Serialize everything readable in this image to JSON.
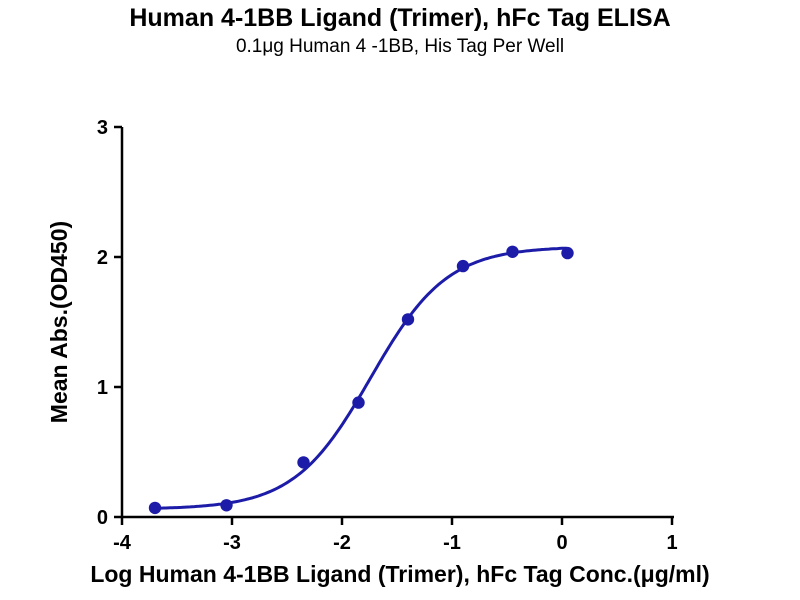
{
  "page": {
    "background": "#ffffff"
  },
  "chart_data": {
    "type": "scatter",
    "title": "Human 4-1BB Ligand (Trimer), hFc Tag ELISA",
    "subtitle": "0.1μg Human 4 -1BB, His Tag Per Well",
    "xlabel": "Log Human 4-1BB Ligand (Trimer), hFc Tag Conc.(μg/ml)",
    "ylabel": "Mean Abs.(OD450)",
    "xlim": [
      -4,
      1
    ],
    "ylim": [
      0,
      3
    ],
    "x_ticks": [
      -4,
      -3,
      -2,
      -1,
      0,
      1
    ],
    "y_ticks": [
      0,
      1,
      2,
      3
    ],
    "grid": false,
    "legend": "none",
    "axis_color": "#000000",
    "series": [
      {
        "name": "Human 4-1BB Ligand (Trimer), hFc Tag",
        "color": "#1c1ca8",
        "marker": "circle",
        "points": [
          {
            "x": -3.7,
            "y": 0.07
          },
          {
            "x": -3.05,
            "y": 0.09
          },
          {
            "x": -2.35,
            "y": 0.42
          },
          {
            "x": -1.85,
            "y": 0.88
          },
          {
            "x": -1.4,
            "y": 1.52
          },
          {
            "x": -0.9,
            "y": 1.93
          },
          {
            "x": -0.45,
            "y": 2.04
          },
          {
            "x": 0.05,
            "y": 2.03
          }
        ],
        "fit_curve": {
          "model": "4PL",
          "bottom": 0.06,
          "top": 2.08,
          "log_ec50": -1.74,
          "hill_slope": 1.25
        }
      }
    ]
  }
}
